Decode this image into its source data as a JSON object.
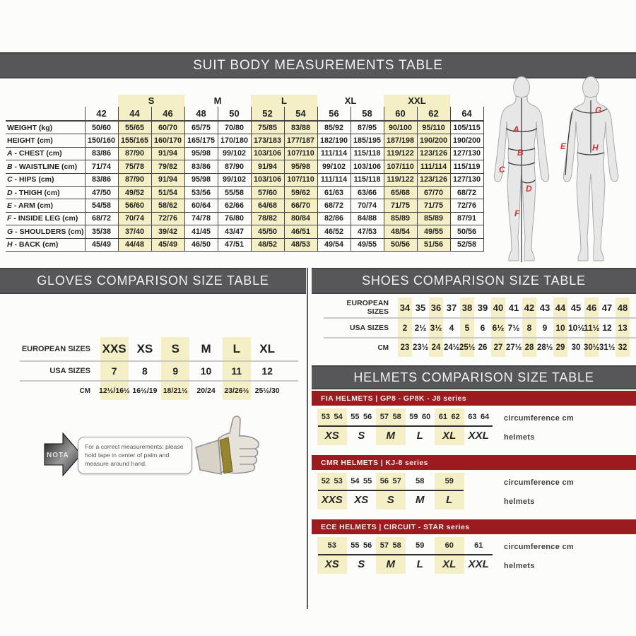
{
  "suit_section": {
    "title": "SUIT BODY MEASUREMENTS TABLE",
    "size_groups": [
      {
        "label": "",
        "span": 1,
        "highlight": false
      },
      {
        "label": "S",
        "span": 2,
        "highlight": true
      },
      {
        "label": "M",
        "span": 2,
        "highlight": false
      },
      {
        "label": "L",
        "span": 2,
        "highlight": true
      },
      {
        "label": "XL",
        "span": 2,
        "highlight": false
      },
      {
        "label": "XXL",
        "span": 2,
        "highlight": true
      },
      {
        "label": "",
        "span": 1,
        "highlight": false
      }
    ],
    "sizes": [
      "42",
      "44",
      "46",
      "48",
      "50",
      "52",
      "54",
      "56",
      "58",
      "60",
      "62",
      "64"
    ],
    "highlighted_size_indexes": [
      1,
      2,
      5,
      6,
      9,
      10
    ],
    "rows": [
      {
        "letter": "",
        "label": "WEIGHT (kg)",
        "values": [
          "50/60",
          "55/65",
          "60/70",
          "65/75",
          "70/80",
          "75/85",
          "83/88",
          "85/92",
          "87/95",
          "90/100",
          "95/110",
          "105/115"
        ]
      },
      {
        "letter": "",
        "label": "HEIGHT (cm)",
        "values": [
          "150/160",
          "155/165",
          "160/170",
          "165/175",
          "170/180",
          "173/183",
          "177/187",
          "182/190",
          "185/195",
          "187/198",
          "190/200",
          "190/200"
        ]
      },
      {
        "letter": "A",
        "label": "CHEST (cm)",
        "values": [
          "83/86",
          "87/90",
          "91/94",
          "95/98",
          "99/102",
          "103/106",
          "107/110",
          "111/114",
          "115/118",
          "119/122",
          "123/126",
          "127/130"
        ]
      },
      {
        "letter": "B",
        "label": "WAISTLINE (cm)",
        "values": [
          "71/74",
          "75/78",
          "79/82",
          "83/86",
          "87/90",
          "91/94",
          "95/98",
          "99/102",
          "103/106",
          "107/110",
          "111/114",
          "115/119"
        ]
      },
      {
        "letter": "C",
        "label": "HIPS (cm)",
        "values": [
          "83/86",
          "87/90",
          "91/94",
          "95/98",
          "99/102",
          "103/106",
          "107/110",
          "111/114",
          "115/118",
          "119/122",
          "123/126",
          "127/130"
        ]
      },
      {
        "letter": "D",
        "label": "THIGH (cm)",
        "values": [
          "47/50",
          "49/52",
          "51/54",
          "53/56",
          "55/58",
          "57/60",
          "59/62",
          "61/63",
          "63/66",
          "65/68",
          "67/70",
          "68/72"
        ]
      },
      {
        "letter": "E",
        "label": "ARM (cm)",
        "values": [
          "54/58",
          "56/60",
          "58/62",
          "60/64",
          "62/66",
          "64/68",
          "66/70",
          "68/72",
          "70/74",
          "71/75",
          "71/75",
          "72/76"
        ]
      },
      {
        "letter": "F",
        "label": "INSIDE LEG (cm)",
        "values": [
          "68/72",
          "70/74",
          "72/76",
          "74/78",
          "76/80",
          "78/82",
          "80/84",
          "82/86",
          "84/88",
          "85/89",
          "85/89",
          "87/91"
        ]
      },
      {
        "letter": "G",
        "label": "SHOULDERS (cm)",
        "values": [
          "35/38",
          "37/40",
          "39/42",
          "41/45",
          "43/47",
          "45/50",
          "46/51",
          "46/52",
          "47/53",
          "48/54",
          "49/55",
          "50/56"
        ]
      },
      {
        "letter": "H",
        "label": "BACK (cm)",
        "values": [
          "45/49",
          "44/48",
          "45/49",
          "46/50",
          "47/51",
          "48/52",
          "48/53",
          "49/54",
          "49/55",
          "50/56",
          "51/56",
          "52/58"
        ]
      }
    ],
    "figure_markers": {
      "front": [
        "A",
        "B",
        "C",
        "D",
        "F"
      ],
      "back": [
        "G",
        "E",
        "H"
      ]
    }
  },
  "gloves_section": {
    "title": "GLOVES COMPARISON SIZE TABLE",
    "rows": [
      {
        "label": "EUROPEAN SIZES",
        "values": [
          "XXS",
          "XS",
          "S",
          "M",
          "L",
          "XL"
        ]
      },
      {
        "label": "USA SIZES",
        "values": [
          "7",
          "8",
          "9",
          "10",
          "11",
          "12"
        ]
      },
      {
        "label": "CM",
        "values": [
          "12½/16½",
          "16½/19",
          "18/21½",
          "20/24",
          "23/26½",
          "25½/30"
        ]
      }
    ],
    "highlighted_columns": [
      0,
      2,
      4
    ],
    "nota": {
      "label": "NOTA",
      "text": "For a correct measurements: please hold tape in center of palm and measure around hand."
    }
  },
  "shoes_section": {
    "title": "SHOES COMPARISON SIZE TABLE",
    "rows": [
      {
        "label": "EUROPEAN SIZES",
        "values": [
          "34",
          "35",
          "36",
          "37",
          "38",
          "39",
          "40",
          "41",
          "42",
          "43",
          "44",
          "45",
          "46",
          "47",
          "48"
        ]
      },
      {
        "label": "USA SIZES",
        "values": [
          "2",
          "2½",
          "3½",
          "4",
          "5",
          "6",
          "6½",
          "7½",
          "8",
          "9",
          "10",
          "10½",
          "11½",
          "12",
          "13"
        ]
      },
      {
        "label": "CM",
        "values": [
          "23",
          "23½",
          "24",
          "24½",
          "25½",
          "26",
          "27",
          "27½",
          "28",
          "28½",
          "29",
          "30",
          "30½",
          "31½",
          "32"
        ]
      }
    ],
    "highlighted_columns": [
      0,
      2,
      4,
      6,
      8,
      10,
      12,
      14
    ]
  },
  "helmets_section": {
    "title": "HELMETS COMPARISON SIZE TABLE",
    "col_label_top": "circumference cm",
    "col_label_bottom": "helmets",
    "tables": [
      {
        "series_label": "FIA HELMETS  |  GP8 - GP8K - J8 series",
        "groups": [
          {
            "circumferences": [
              "53",
              "54"
            ],
            "size": "XS",
            "highlight": true
          },
          {
            "circumferences": [
              "55",
              "56"
            ],
            "size": "S",
            "highlight": false
          },
          {
            "circumferences": [
              "57",
              "58"
            ],
            "size": "M",
            "highlight": true
          },
          {
            "circumferences": [
              "59",
              "60"
            ],
            "size": "L",
            "highlight": false
          },
          {
            "circumferences": [
              "61",
              "62"
            ],
            "size": "XL",
            "highlight": true
          },
          {
            "circumferences": [
              "63",
              "64"
            ],
            "size": "XXL",
            "highlight": false
          }
        ]
      },
      {
        "series_label": "CMR HELMETS  |  KJ-8 series",
        "groups": [
          {
            "circumferences": [
              "52",
              "53"
            ],
            "size": "XXS",
            "highlight": true
          },
          {
            "circumferences": [
              "54",
              "55"
            ],
            "size": "XS",
            "highlight": false
          },
          {
            "circumferences": [
              "56",
              "57"
            ],
            "size": "S",
            "highlight": true
          },
          {
            "circumferences": [
              "58"
            ],
            "size": "M",
            "highlight": false
          },
          {
            "circumferences": [
              "59"
            ],
            "size": "L",
            "highlight": true
          }
        ]
      },
      {
        "series_label": "ECE HELMETS  |  CIRCUIT - STAR series",
        "groups": [
          {
            "circumferences": [
              "53"
            ],
            "size": "XS",
            "highlight": true
          },
          {
            "circumferences": [
              "55",
              "56"
            ],
            "size": "S",
            "highlight": false
          },
          {
            "circumferences": [
              "57",
              "58"
            ],
            "size": "M",
            "highlight": true
          },
          {
            "circumferences": [
              "59"
            ],
            "size": "L",
            "highlight": false
          },
          {
            "circumferences": [
              "60"
            ],
            "size": "XL",
            "highlight": true
          },
          {
            "circumferences": [
              "61"
            ],
            "size": "XXL",
            "highlight": false
          }
        ]
      }
    ]
  },
  "colors": {
    "header_bar": "#57575a",
    "accent_red": "#9b1b1e",
    "highlight_yellow": "#f4efc6",
    "marker_red": "#d0342c"
  }
}
